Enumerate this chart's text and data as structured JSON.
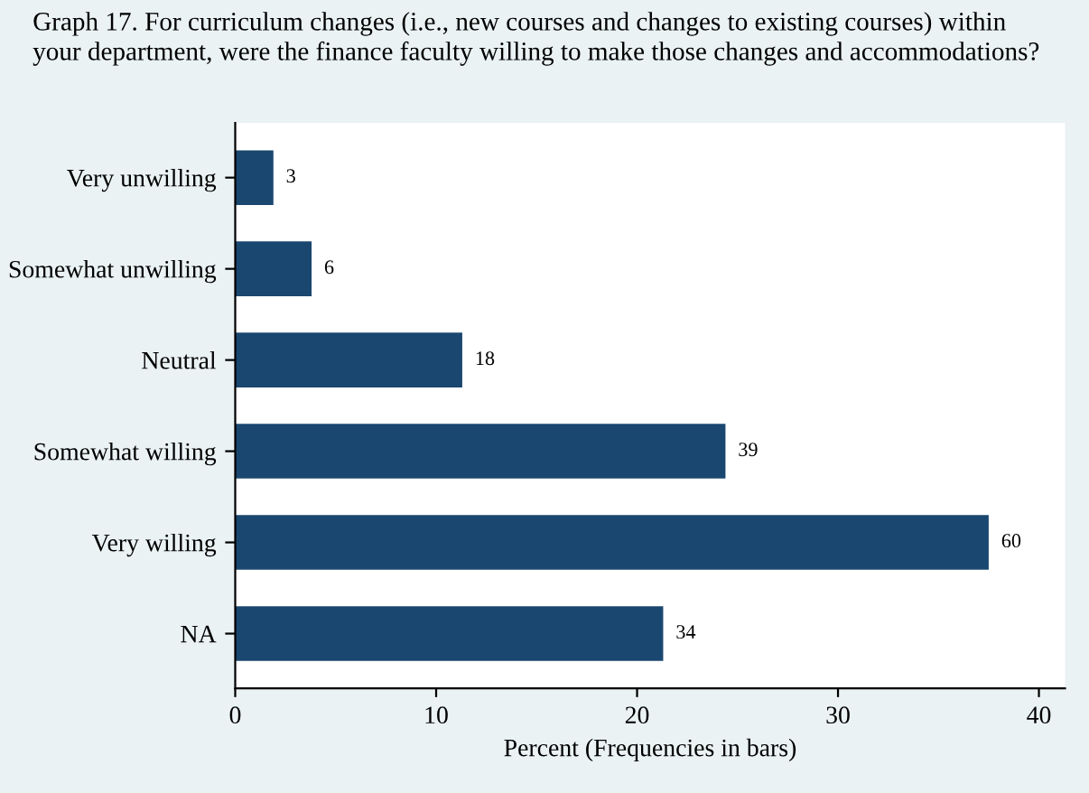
{
  "chart_data": {
    "type": "bar",
    "orientation": "horizontal",
    "title": "Graph 17. For curriculum changes (i.e., new courses and changes to existing courses) within\nyour department, were the finance faculty willing to make those changes and accommodations?",
    "xlabel": "Percent (Frequencies in bars)",
    "categories": [
      "Very unwilling",
      "Somewhat unwilling",
      "Neutral",
      "Somewhat willing",
      "Very willing",
      "NA"
    ],
    "values": [
      1.9,
      3.8,
      11.3,
      24.4,
      37.5,
      21.3
    ],
    "annotations": [
      {
        "text": "3",
        "x": 1.9,
        "y": "Very unwilling"
      },
      {
        "text": "6",
        "x": 3.8,
        "y": "Somewhat unwilling"
      },
      {
        "text": "18",
        "x": 11.3,
        "y": "Neutral"
      },
      {
        "text": "39",
        "x": 24.4,
        "y": "Somewhat willing"
      },
      {
        "text": "60",
        "x": 37.5,
        "y": "Very willing"
      },
      {
        "text": "34",
        "x": 21.3,
        "y": "NA"
      }
    ],
    "color": "#1a476f",
    "xlim": [
      0,
      41.3
    ],
    "xticks": [
      0,
      10,
      20,
      30,
      40
    ],
    "grid": false,
    "legend": false
  }
}
